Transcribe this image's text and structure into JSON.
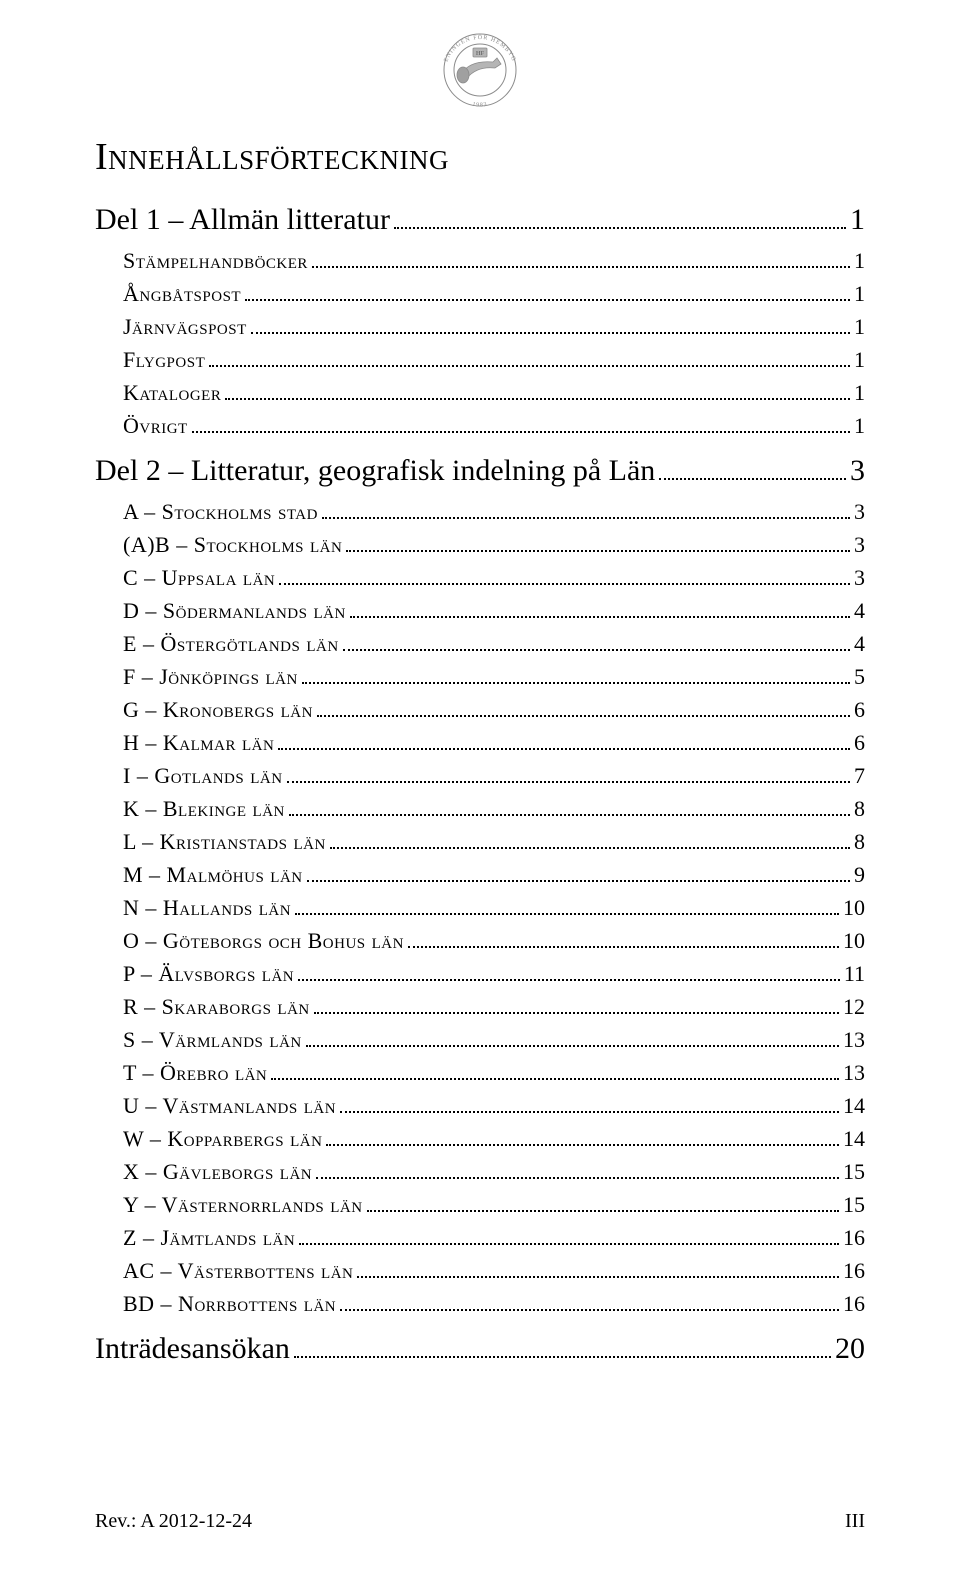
{
  "logo": {
    "top_text": "ENINGEN FÖR HEMBYG",
    "center_text": "HF",
    "bottom_text": "1983",
    "side_left": "RIKSFÖR",
    "side_right": "DSFILATELI"
  },
  "title": "Innehållsförteckning",
  "parts": [
    {
      "label": "Del 1 – Allmän litteratur",
      "page": "1",
      "items": [
        {
          "label": "Stämpelhandböcker",
          "page": "1"
        },
        {
          "label": "Ångbåtspost",
          "page": "1"
        },
        {
          "label": "Järnvägspost",
          "page": "1"
        },
        {
          "label": "Flygpost",
          "page": "1"
        },
        {
          "label": "Kataloger",
          "page": "1"
        },
        {
          "label": "Övrigt",
          "page": "1"
        }
      ]
    },
    {
      "label": "Del 2 – Litteratur, geografisk indelning på Län",
      "page": "3",
      "items": [
        {
          "label": "A – Stockholms stad",
          "page": "3"
        },
        {
          "label": "(A)B – Stockholms län",
          "page": "3"
        },
        {
          "label": "C – Uppsala län",
          "page": "3"
        },
        {
          "label": "D – Södermanlands län",
          "page": "4"
        },
        {
          "label": "E – Östergötlands län",
          "page": "4"
        },
        {
          "label": "F – Jönköpings län",
          "page": "5"
        },
        {
          "label": "G – Kronobergs län",
          "page": "6"
        },
        {
          "label": "H – Kalmar län",
          "page": "6"
        },
        {
          "label": "I – Gotlands län",
          "page": "7"
        },
        {
          "label": "K – Blekinge län",
          "page": "8"
        },
        {
          "label": "L – Kristianstads län",
          "page": "8"
        },
        {
          "label": "M – Malmöhus län",
          "page": "9"
        },
        {
          "label": "N – Hallands län",
          "page": "10"
        },
        {
          "label": "O – Göteborgs och Bohus län",
          "page": "10"
        },
        {
          "label": "P – Älvsborgs län",
          "page": "11"
        },
        {
          "label": "R – Skaraborgs län",
          "page": "12"
        },
        {
          "label": "S – Värmlands län",
          "page": "13"
        },
        {
          "label": "T – Örebro län",
          "page": "13"
        },
        {
          "label": "U – Västmanlands län",
          "page": "14"
        },
        {
          "label": "W – Kopparbergs län",
          "page": "14"
        },
        {
          "label": "X – Gävleborgs län",
          "page": "15"
        },
        {
          "label": "Y – Västernorrlands län",
          "page": "15"
        },
        {
          "label": "Z – Jämtlands län",
          "page": "16"
        },
        {
          "label": "AC – Västerbottens län",
          "page": "16"
        },
        {
          "label": "BD – Norrbottens län",
          "page": "16"
        }
      ]
    },
    {
      "label": "Inträdesansökan",
      "page": "20",
      "items": []
    }
  ],
  "footer": {
    "left": "Rev.: A 2012-12-24",
    "right": "III"
  },
  "colors": {
    "text": "#000000",
    "background": "#ffffff",
    "logo_gray": "#8b8b8b",
    "logo_gray_light": "#b5b5b5"
  }
}
